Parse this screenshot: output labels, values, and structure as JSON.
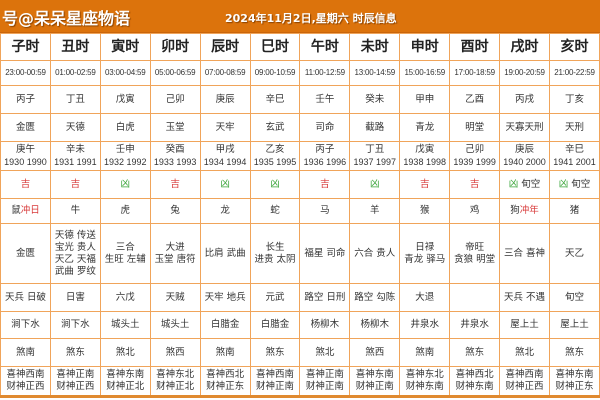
{
  "header": {
    "site": "号@呆呆星座物语",
    "date_title": "2024年11月2日,星期六 时辰信息"
  },
  "colors": {
    "banner": "#dc730c",
    "ji": "#d83a3a",
    "xiong": "#3aa53a",
    "border": "#f0a45a"
  },
  "columns": [
    {
      "name": "子时",
      "time": "23:00-00:59",
      "ganzhi": "丙子",
      "star": "金匮",
      "chong_gz": "庚午",
      "chong_years": "1930 1990",
      "luck": "吉",
      "luck_type": "ji",
      "luck_extra": "",
      "animal": "鼠",
      "animal_note": "冲日",
      "good": [
        "金匮"
      ],
      "bad": "天兵 日破",
      "nayin": "涧下水",
      "sha": "煞南",
      "xishen": "喜神西南",
      "caishen": "财神正西"
    },
    {
      "name": "丑时",
      "time": "01:00-02:59",
      "ganzhi": "丁丑",
      "star": "天德",
      "chong_gz": "辛未",
      "chong_years": "1931 1991",
      "luck": "吉",
      "luck_type": "ji",
      "luck_extra": "",
      "animal": "牛",
      "animal_note": "",
      "good": [
        "天德 传送",
        "宝光 贵人",
        "天乙 天福",
        "武曲 罗纹"
      ],
      "bad": "日害",
      "nayin": "涧下水",
      "sha": "煞东",
      "xishen": "喜神正南",
      "caishen": "财神正西"
    },
    {
      "name": "寅时",
      "time": "03:00-04:59",
      "ganzhi": "戊寅",
      "star": "白虎",
      "chong_gz": "壬申",
      "chong_years": "1932 1992",
      "luck": "凶",
      "luck_type": "xiong",
      "luck_extra": "",
      "animal": "虎",
      "animal_note": "",
      "good": [
        "三合",
        "生旺 左辅"
      ],
      "bad": "六戊",
      "nayin": "城头土",
      "sha": "煞北",
      "xishen": "喜神东南",
      "caishen": "财神正北"
    },
    {
      "name": "卯时",
      "time": "05:00-06:59",
      "ganzhi": "己卯",
      "star": "玉堂",
      "chong_gz": "癸酉",
      "chong_years": "1933 1993",
      "luck": "吉",
      "luck_type": "ji",
      "luck_extra": "",
      "animal": "兔",
      "animal_note": "",
      "good": [
        "大进",
        "玉堂 唐符"
      ],
      "bad": "天贼",
      "nayin": "城头土",
      "sha": "煞西",
      "xishen": "喜神东北",
      "caishen": "财神正北"
    },
    {
      "name": "辰时",
      "time": "07:00-08:59",
      "ganzhi": "庚辰",
      "star": "天牢",
      "chong_gz": "甲戌",
      "chong_years": "1934 1994",
      "luck": "凶",
      "luck_type": "xiong",
      "luck_extra": "",
      "animal": "龙",
      "animal_note": "",
      "good": [
        "比肩 武曲"
      ],
      "bad": "天牢 地兵",
      "nayin": "白腊金",
      "sha": "煞南",
      "xishen": "喜神西北",
      "caishen": "财神正东"
    },
    {
      "name": "巳时",
      "time": "09:00-10:59",
      "ganzhi": "辛巳",
      "star": "玄武",
      "chong_gz": "乙亥",
      "chong_years": "1935 1995",
      "luck": "凶",
      "luck_type": "xiong",
      "luck_extra": "",
      "animal": "蛇",
      "animal_note": "",
      "good": [
        "长生",
        "进贵 太阴"
      ],
      "bad": "元武",
      "nayin": "白腊金",
      "sha": "煞东",
      "xishen": "喜神西南",
      "caishen": "财神正南"
    },
    {
      "name": "午时",
      "time": "11:00-12:59",
      "ganzhi": "壬午",
      "star": "司命",
      "chong_gz": "丙子",
      "chong_years": "1936 1996",
      "luck": "吉",
      "luck_type": "ji",
      "luck_extra": "",
      "animal": "马",
      "animal_note": "",
      "good": [
        "福星 司命"
      ],
      "bad": "路空 日刑",
      "nayin": "杨柳木",
      "sha": "煞北",
      "xishen": "喜神正南",
      "caishen": "财神正南"
    },
    {
      "name": "未时",
      "time": "13:00-14:59",
      "ganzhi": "癸未",
      "star": "截路",
      "chong_gz": "丁丑",
      "chong_years": "1937 1997",
      "luck": "凶",
      "luck_type": "xiong",
      "luck_extra": "",
      "animal": "羊",
      "animal_note": "",
      "good": [
        "六合 贵人"
      ],
      "bad": "路空 勾陈",
      "nayin": "杨柳木",
      "sha": "煞西",
      "xishen": "喜神东南",
      "caishen": "财神正南"
    },
    {
      "name": "申时",
      "time": "15:00-16:59",
      "ganzhi": "甲申",
      "star": "青龙",
      "chong_gz": "戊寅",
      "chong_years": "1938 1998",
      "luck": "吉",
      "luck_type": "ji",
      "luck_extra": "",
      "animal": "猴",
      "animal_note": "",
      "good": [
        "日禄",
        "青龙 驿马"
      ],
      "bad": "大退",
      "nayin": "井泉水",
      "sha": "煞南",
      "xishen": "喜神东北",
      "caishen": "财神东南"
    },
    {
      "name": "酉时",
      "time": "17:00-18:59",
      "ganzhi": "乙酉",
      "star": "明堂",
      "chong_gz": "己卯",
      "chong_years": "1939 1999",
      "luck": "吉",
      "luck_type": "ji",
      "luck_extra": "",
      "animal": "鸡",
      "animal_note": "",
      "good": [
        "帝旺",
        "贪狼 明堂"
      ],
      "bad": "",
      "nayin": "井泉水",
      "sha": "煞东",
      "xishen": "喜神西北",
      "caishen": "财神东南"
    },
    {
      "name": "戌时",
      "time": "19:00-20:59",
      "ganzhi": "丙戌",
      "star": "天寡天刑",
      "chong_gz": "庚辰",
      "chong_years": "1940 2000",
      "luck": "凶",
      "luck_type": "xiong",
      "luck_extra": "旬空",
      "animal": "狗",
      "animal_note": "冲年",
      "good": [
        "三合 喜神"
      ],
      "bad": "天兵 不遇",
      "nayin": "屋上土",
      "sha": "煞北",
      "xishen": "喜神西南",
      "caishen": "财神正西"
    },
    {
      "name": "亥时",
      "time": "21:00-22:59",
      "ganzhi": "丁亥",
      "star": "天刑",
      "chong_gz": "辛巳",
      "chong_years": "1941 2001",
      "luck": "凶",
      "luck_type": "xiong",
      "luck_extra": "旬空",
      "animal": "猪",
      "animal_note": "",
      "good": [
        "天乙"
      ],
      "bad": "旬空",
      "nayin": "屋上土",
      "sha": "煞东",
      "xishen": "喜神东南",
      "caishen": "财神正东"
    }
  ]
}
